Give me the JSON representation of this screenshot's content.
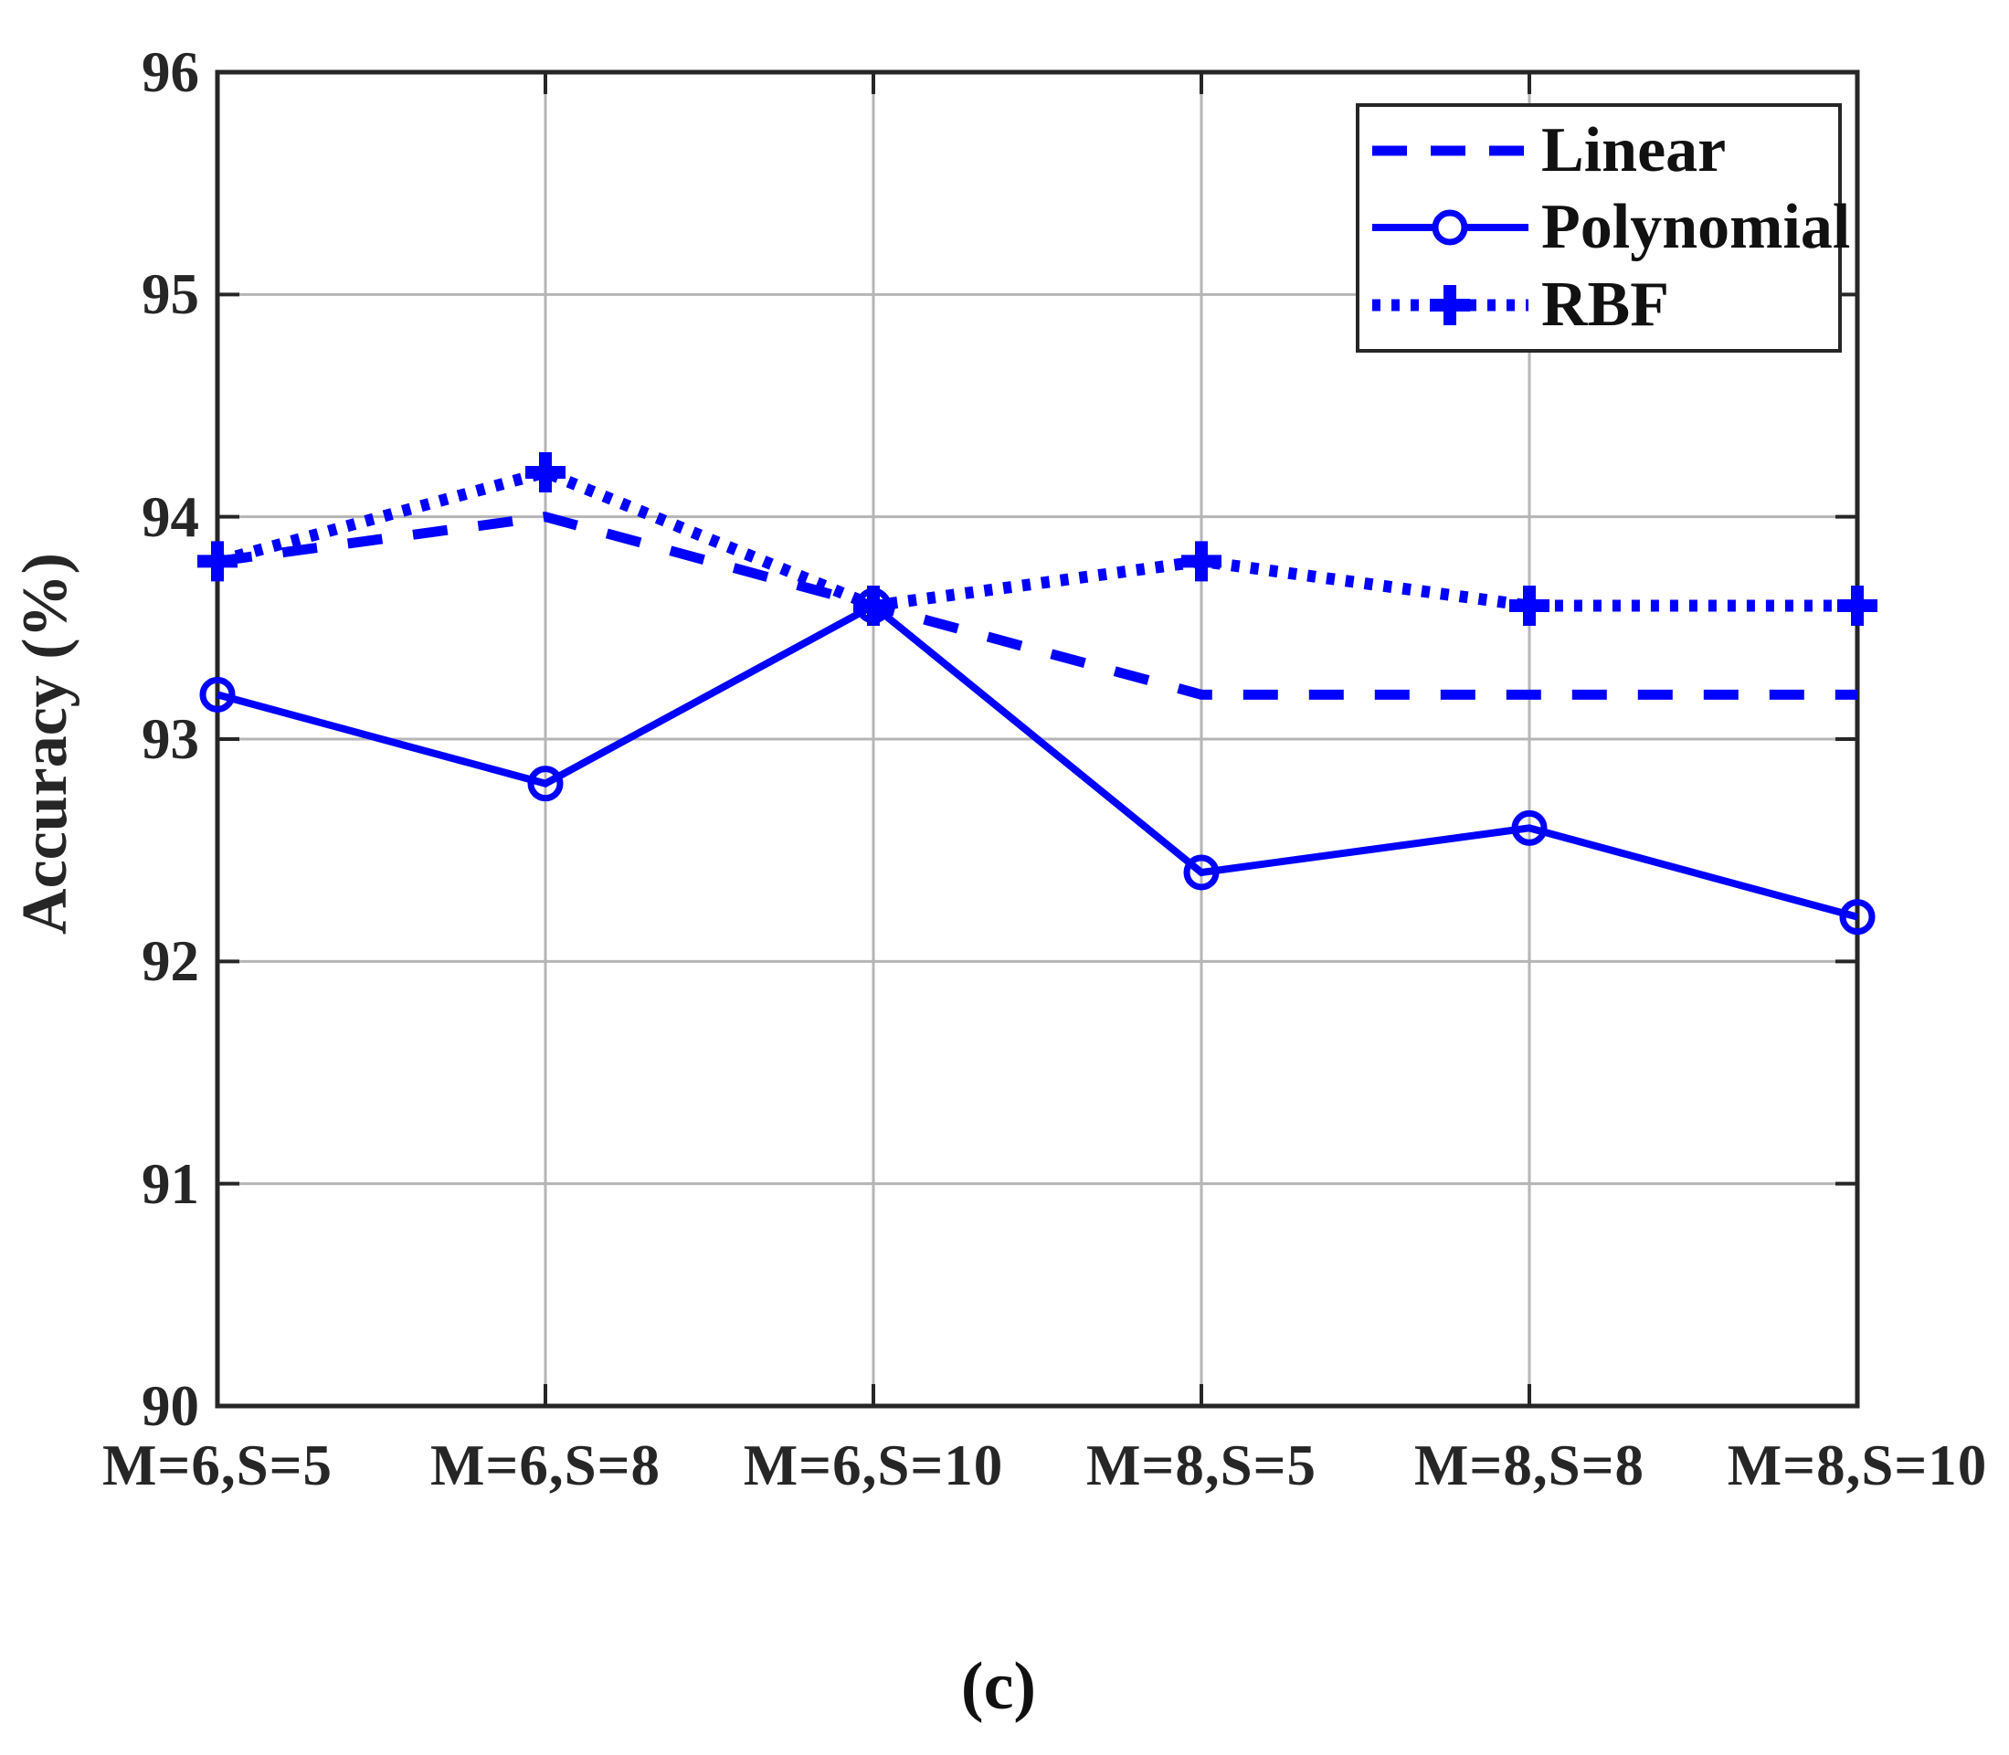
{
  "figure": {
    "ylabel": "Accuracy (%)",
    "caption": "(c)"
  },
  "colors": {
    "series_blue": "#0000FF",
    "axis": "#262626",
    "grid": "#B5B5B5",
    "background": "#FFFFFF"
  },
  "legend": {
    "entries": [
      "Linear",
      "Polynomial",
      "RBF"
    ]
  },
  "chart_data": {
    "type": "line",
    "title": "",
    "xlabel": "",
    "ylabel": "Accuracy (%)",
    "caption": "(c)",
    "categories": [
      "M=6,S=5",
      "M=6,S=8",
      "M=6,S=10",
      "M=8,S=5",
      "M=8,S=8",
      "M=8,S=10"
    ],
    "series": [
      {
        "name": "Linear",
        "line_style": "dashed",
        "marker": "none",
        "values": [
          93.8,
          94.0,
          93.6,
          93.2,
          93.2,
          93.2
        ]
      },
      {
        "name": "Polynomial",
        "line_style": "solid",
        "marker": "circle",
        "values": [
          93.2,
          92.8,
          93.6,
          92.4,
          92.6,
          92.2
        ]
      },
      {
        "name": "RBF",
        "line_style": "dotted",
        "marker": "plus",
        "values": [
          93.8,
          94.2,
          93.6,
          93.8,
          93.6,
          93.6
        ]
      }
    ],
    "ylim": [
      90,
      96
    ],
    "yticks": [
      90,
      91,
      92,
      93,
      94,
      95,
      96
    ],
    "grid": true,
    "legend_position": "top-right"
  }
}
